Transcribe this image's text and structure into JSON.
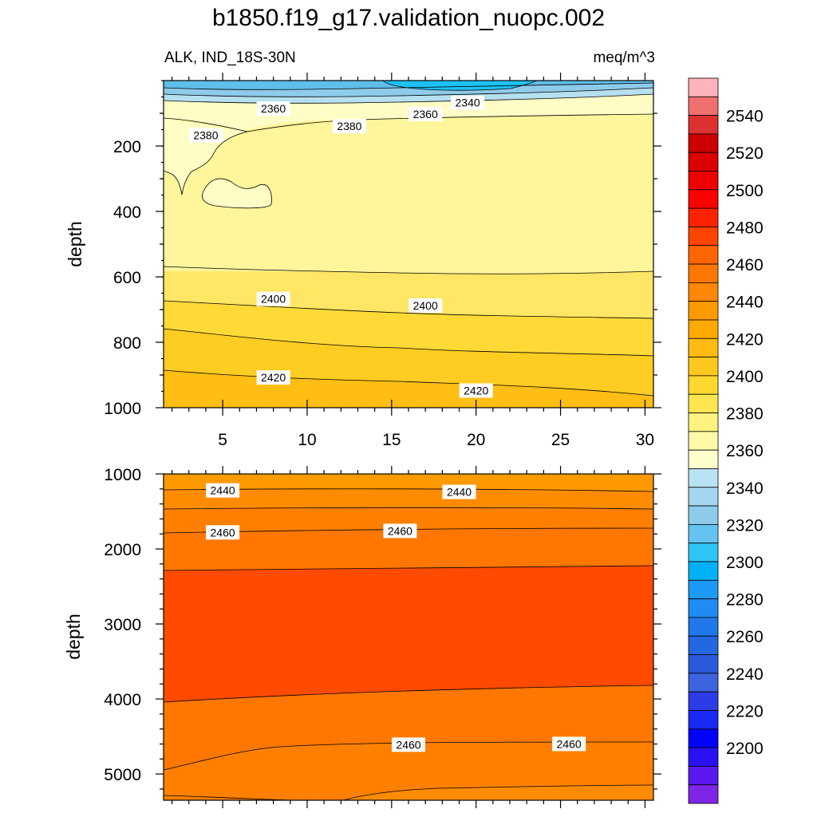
{
  "chart_data": [
    {
      "type": "contour",
      "title": "b1850.f19_g17.validation_nuopc.002",
      "subtitle_left": "ALK, IND_18S-30N",
      "subtitle_right": "meq/m^3",
      "ylabel": "depth",
      "xlim": [
        1.5,
        30.5
      ],
      "ylim": [
        1000,
        0
      ],
      "x_ticks": [
        5,
        10,
        15,
        20,
        25,
        30
      ],
      "y_ticks": [
        200,
        400,
        600,
        800,
        1000
      ],
      "contour_interval": 10,
      "bands_top_to_bottom": [
        {
          "range": "2330-2340",
          "color": "#1CC2F5"
        },
        {
          "range": "2340-2350",
          "color": "#5FBEEA"
        },
        {
          "range": "2350-2360",
          "color": "#8ECBEB"
        },
        {
          "range": "2360-2370",
          "color": "#B6E0F0"
        },
        {
          "range": "2370-2380",
          "color": "#FFFCC6"
        },
        {
          "range": "2380-2390",
          "color": "#FFF59A"
        },
        {
          "range": "2390-2400",
          "color": "#FFE665"
        },
        {
          "range": "2400-2410",
          "color": "#FFDA37"
        },
        {
          "range": "2410-2420",
          "color": "#FFCC22"
        },
        {
          "range": "2420-2430",
          "color": "#FFBE14"
        }
      ],
      "contour_labels": [
        {
          "text": "2360",
          "x": 8,
          "depth": 88
        },
        {
          "text": "2360",
          "x": 17,
          "depth": 105
        },
        {
          "text": "2340",
          "x": 19.5,
          "depth": 70
        },
        {
          "text": "2380",
          "x": 4,
          "depth": 170
        },
        {
          "text": "2380",
          "x": 12.5,
          "depth": 142
        },
        {
          "text": "2400",
          "x": 8,
          "depth": 670
        },
        {
          "text": "2400",
          "x": 17,
          "depth": 690
        },
        {
          "text": "2420",
          "x": 8,
          "depth": 910
        },
        {
          "text": "2420",
          "x": 20,
          "depth": 950
        }
      ]
    },
    {
      "type": "contour",
      "ylabel": "depth",
      "xlim": [
        1.5,
        30.5
      ],
      "ylim": [
        5350,
        1000
      ],
      "y_ticks": [
        1000,
        2000,
        3000,
        4000,
        5000
      ],
      "contour_interval": 10,
      "bands_top_to_bottom": [
        {
          "range": "2430-2440",
          "color": "#FF9900"
        },
        {
          "range": "2440-2450",
          "color": "#FF8C00"
        },
        {
          "range": "2450-2460",
          "color": "#FF7F00"
        },
        {
          "range": "2460-2470",
          "color": "#FF4A00"
        }
      ],
      "contour_labels": [
        {
          "text": "2440",
          "x": 5,
          "depth": 1230
        },
        {
          "text": "2440",
          "x": 19,
          "depth": 1250
        },
        {
          "text": "2460",
          "x": 5,
          "depth": 1790
        },
        {
          "text": "2460",
          "x": 15.5,
          "depth": 1770
        },
        {
          "text": "2460",
          "x": 16,
          "depth": 4620
        },
        {
          "text": "2460",
          "x": 25.5,
          "depth": 4610
        }
      ]
    }
  ],
  "colorbar": {
    "tick_labels": [
      "2540",
      "2520",
      "2500",
      "2480",
      "2460",
      "2440",
      "2420",
      "2400",
      "2380",
      "2360",
      "2340",
      "2320",
      "2300",
      "2280",
      "2260",
      "2240",
      "2220",
      "2200"
    ],
    "colors_top_to_bottom": [
      "#FFB3BA",
      "#F07070",
      "#DD3030",
      "#CC0000",
      "#DD0000",
      "#EE0000",
      "#FF0000",
      "#FF2200",
      "#FF4400",
      "#FF6600",
      "#FF7700",
      "#FF8800",
      "#FF9900",
      "#FFAA00",
      "#FFBB11",
      "#FFC81E",
      "#FFD82E",
      "#FFE550",
      "#FFF27F",
      "#FFF9A8",
      "#FFFFCC",
      "#B9E3F2",
      "#A4D7EF",
      "#8ECBEB",
      "#64C3F0",
      "#2EC4F5",
      "#00B2F5",
      "#1C9AF5",
      "#1E8CF0",
      "#2078E8",
      "#2468E0",
      "#2A5ADA",
      "#3C64DC",
      "#2D3CE6",
      "#1B2AF2",
      "#0000FF",
      "#2A10F5",
      "#5A18EE",
      "#7F25E6"
    ]
  }
}
